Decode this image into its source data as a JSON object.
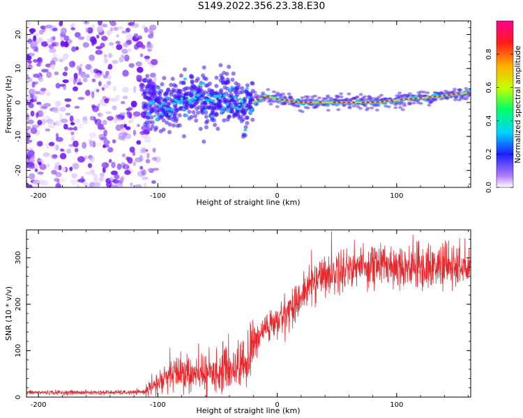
{
  "title": "S149.2022.356.23.38.E30",
  "colors": {
    "snr_line": "#e8272b",
    "spectrogram_noise": "#8a2be2",
    "ridge_core": "#ff1a1a"
  },
  "chart_data": [
    {
      "type": "heatmap",
      "name": "spectrogram",
      "xlabel": "Height of straight line (km)",
      "ylabel": "Frequency (Hz)",
      "xlim": [
        -210,
        162
      ],
      "ylim": [
        -25,
        24
      ],
      "xticks": [
        -200,
        -100,
        0,
        100
      ],
      "xtick_labels": [
        "-200",
        "-100",
        "0",
        "100"
      ],
      "yticks": [
        -20,
        -10,
        0,
        10,
        20
      ],
      "ytick_labels": [
        "-20",
        "-10",
        "0",
        "10",
        "20"
      ],
      "ridge_frequency": {
        "x": [
          -110,
          -90,
          -75,
          -65,
          -55,
          -45,
          -30,
          -20,
          -10,
          0,
          20,
          50,
          80,
          110,
          140,
          162
        ],
        "y": [
          0,
          -1,
          1,
          3,
          -1,
          2,
          -1,
          0,
          2,
          1,
          0,
          0,
          0,
          1,
          2,
          3
        ]
      },
      "colorbar": {
        "label": "Normalized spectral amplitude",
        "range": [
          0,
          1
        ],
        "ticks": [
          0,
          0.2,
          0.4,
          0.6,
          0.8
        ],
        "tick_labels": [
          "0.0",
          "0.2",
          "0.4",
          "0.6",
          "0.8"
        ],
        "colormap": "rainbow"
      }
    },
    {
      "type": "line",
      "name": "snr",
      "xlabel": "Height of straight line (km)",
      "ylabel": "SNR (10 * v/v)",
      "xlim": [
        -210,
        162
      ],
      "ylim": [
        0,
        360
      ],
      "xticks": [
        -200,
        -100,
        0,
        100
      ],
      "xtick_labels": [
        "-200",
        "-100",
        "0",
        "100"
      ],
      "yticks": [
        0,
        100,
        200,
        300
      ],
      "ytick_labels": [
        "0",
        "100",
        "200",
        "300"
      ],
      "series": [
        {
          "name": "SNR",
          "x": [
            -210,
            -180,
            -150,
            -120,
            -110,
            -100,
            -90,
            -80,
            -70,
            -60,
            -50,
            -40,
            -30,
            -25,
            -20,
            -10,
            0,
            10,
            20,
            30,
            40,
            50,
            60,
            80,
            100,
            120,
            140,
            162
          ],
          "y": [
            10,
            10,
            10,
            10,
            12,
            30,
            45,
            55,
            45,
            50,
            55,
            60,
            70,
            75,
            110,
            150,
            160,
            190,
            215,
            250,
            265,
            270,
            280,
            285,
            285,
            280,
            282,
            275
          ]
        }
      ]
    }
  ]
}
